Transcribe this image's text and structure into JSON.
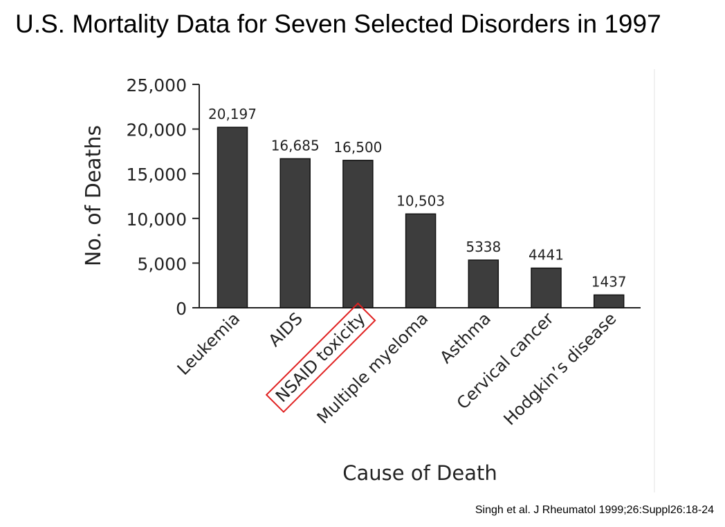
{
  "slide": {
    "title": "U.S. Mortality Data for Seven Selected Disorders in 1997",
    "citation": "Singh et al. J Rheumatol 1999;26:Suppl26:18-24"
  },
  "chart_data": {
    "type": "bar",
    "title": "",
    "xlabel": "Cause of Death",
    "ylabel": "No. of Deaths",
    "ylim": [
      0,
      25000
    ],
    "yticks": [
      0,
      5000,
      10000,
      15000,
      20000,
      25000
    ],
    "ytick_labels": [
      "0",
      "5,000",
      "10,000",
      "15,000",
      "20,000",
      "25,000"
    ],
    "categories": [
      "Leukemia",
      "AIDS",
      "NSAID toxicity",
      "Multiple myeloma",
      "Asthma",
      "Cervical cancer",
      "Hodgkin’s disease"
    ],
    "values": [
      20197,
      16685,
      16500,
      10503,
      5338,
      4441,
      1437
    ],
    "data_labels": [
      "20,197",
      "16,685",
      "16,500",
      "10,503",
      "5338",
      "4441",
      "1437"
    ],
    "highlighted_category": "NSAID toxicity",
    "bar_color": "#3d3d3d",
    "highlight_color": "#e02020",
    "grid": false,
    "legend": "none"
  }
}
